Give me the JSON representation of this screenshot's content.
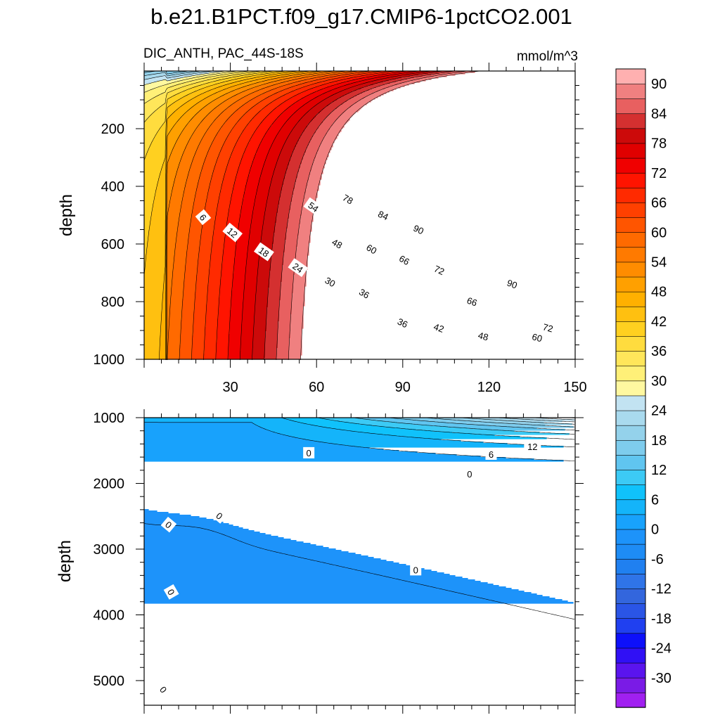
{
  "chart_data": {
    "type": "contour",
    "title": "b.e21.B1PCT.f09_g17.CMIP6-1pctCO2.001",
    "variable": "DIC_ANTH, PAC_44S-18S",
    "units": "mmol/m^3",
    "colorbar": {
      "levels": [
        -33,
        -30,
        -27,
        -24,
        -21,
        -18,
        -15,
        -12,
        -9,
        -6,
        -3,
        0,
        3,
        6,
        9,
        12,
        15,
        18,
        21,
        24,
        27,
        30,
        33,
        36,
        39,
        42,
        45,
        48,
        51,
        54,
        57,
        60,
        63,
        66,
        69,
        72,
        75,
        78,
        81,
        84,
        87,
        90,
        93
      ],
      "labels": [
        "90",
        "84",
        "78",
        "72",
        "66",
        "60",
        "54",
        "48",
        "42",
        "36",
        "30",
        "24",
        "18",
        "12",
        "6",
        "0",
        "-6",
        "-12",
        "-18",
        "-24",
        "-30"
      ],
      "colors": [
        "#a020f0",
        "#7a1be6",
        "#5a14ee",
        "#3010f5",
        "#0d10fa",
        "#2040f0",
        "#2a55e6",
        "#3366dd",
        "#2f74e8",
        "#2080f0",
        "#1e8cf5",
        "#1d93fa",
        "#18a2fc",
        "#14b4fa",
        "#10c2fb",
        "#3ccaf5",
        "#60c5f0",
        "#7ecced",
        "#94d2eb",
        "#a9daee",
        "#c2e3f2",
        "#fff8a0",
        "#fff078",
        "#ffe65a",
        "#ffdc3e",
        "#ffd020",
        "#ffc010",
        "#ffb000",
        "#ffa000",
        "#ff8c00",
        "#ff7a00",
        "#ff6a00",
        "#ff5500",
        "#ff4000",
        "#ff2a00",
        "#ff1400",
        "#f00000",
        "#e00000",
        "#cc0a0a",
        "#d43030",
        "#e86060",
        "#f08080",
        "#ffb0b0"
      ]
    },
    "panels": [
      {
        "name": "upper",
        "x_range": [
          0,
          150
        ],
        "y_range": [
          0,
          1000
        ],
        "x_ticks": [
          "30",
          "60",
          "90",
          "120",
          "150"
        ],
        "y_ticks": [
          "200",
          "400",
          "600",
          "800",
          "1000"
        ],
        "ylabel": "depth",
        "contour_labels": [
          "6",
          "12",
          "18",
          "24",
          "30",
          "36",
          "36",
          "42",
          "48",
          "48",
          "54",
          "60",
          "60",
          "66",
          "66",
          "72",
          "72",
          "78",
          "84",
          "90",
          "90"
        ]
      },
      {
        "name": "lower",
        "x_range": [
          0,
          150
        ],
        "y_range": [
          1000,
          5375
        ],
        "x_ticks": [],
        "y_ticks": [
          "1000",
          "2000",
          "3000",
          "4000",
          "5000"
        ],
        "ylabel": "depth",
        "contour_labels": [
          "0",
          "0",
          "0",
          "0",
          "0",
          "0",
          "0",
          "6",
          "12"
        ]
      }
    ]
  },
  "colors": {
    "background": "#ffffff",
    "line": "#000000"
  }
}
